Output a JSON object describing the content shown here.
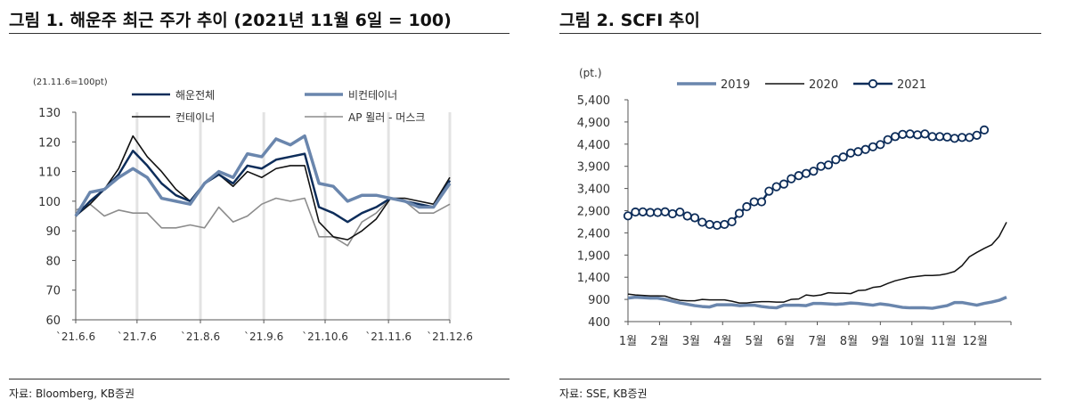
{
  "left": {
    "title": "그림 1. 해운주 최근 주가 추이 (2021년 11월 6일 = 100)",
    "source": "자료: Bloomberg, KB증권"
  },
  "right": {
    "title": "그림 2. SCFI 추이",
    "source": "자료: SSE, KB증권"
  },
  "chart_data": [
    {
      "type": "line",
      "unit_label": "(21.11.6=100pt)",
      "ylim": [
        60,
        130
      ],
      "yticks": [
        60,
        70,
        80,
        90,
        100,
        110,
        120,
        130
      ],
      "xticks": [
        "`21.6.6",
        "`21.7.6",
        "`21.8.6",
        "`21.9.6",
        "`21.10.6",
        "`21.11.6",
        "`21.12.6"
      ],
      "x": [
        "2021-06-06",
        "2021-06-13",
        "2021-06-20",
        "2021-06-27",
        "2021-07-04",
        "2021-07-11",
        "2021-07-18",
        "2021-07-25",
        "2021-08-01",
        "2021-08-08",
        "2021-08-15",
        "2021-08-22",
        "2021-08-29",
        "2021-09-05",
        "2021-09-12",
        "2021-09-19",
        "2021-09-26",
        "2021-10-03",
        "2021-10-10",
        "2021-10-17",
        "2021-10-24",
        "2021-10-31",
        "2021-11-07",
        "2021-11-14",
        "2021-11-21",
        "2021-11-28",
        "2021-12-06"
      ],
      "grid": "vertical at ticks",
      "legend": "top",
      "series": [
        {
          "name": "해운전체",
          "color": "#0d2d5a",
          "width": 2.5,
          "values": [
            95,
            100,
            104,
            109,
            117,
            112,
            106,
            102,
            100,
            106,
            109,
            106,
            112,
            111,
            114,
            115,
            116,
            98,
            96,
            93,
            96,
            98,
            101,
            100,
            99,
            98,
            107
          ]
        },
        {
          "name": "비컨테이너",
          "color": "#6a86ad",
          "width": 3.5,
          "values": [
            95,
            103,
            104,
            108,
            111,
            108,
            101,
            100,
            99,
            106,
            110,
            108,
            116,
            115,
            121,
            119,
            122,
            106,
            105,
            100,
            102,
            102,
            101,
            100,
            98,
            98,
            106
          ]
        },
        {
          "name": "컨테이너",
          "color": "#111111",
          "width": 1.6,
          "values": [
            95,
            99,
            104,
            111,
            122,
            115,
            110,
            104,
            100,
            106,
            109,
            105,
            110,
            108,
            111,
            112,
            112,
            93,
            88,
            87,
            90,
            94,
            101,
            101,
            100,
            99,
            108
          ]
        },
        {
          "name": "AP 묄러 - 머스크",
          "color": "#8c8c8c",
          "width": 1.6,
          "values": [
            97,
            99,
            95,
            97,
            96,
            96,
            91,
            91,
            92,
            91,
            98,
            93,
            95,
            99,
            101,
            100,
            101,
            88,
            88,
            85,
            93,
            96,
            101,
            100,
            96,
            96,
            99
          ]
        }
      ]
    },
    {
      "type": "line",
      "unit_label": "(pt.)",
      "ylim": [
        400,
        5400
      ],
      "yticks": [
        "400",
        "900",
        "1,400",
        "1,900",
        "2,400",
        "2,900",
        "3,400",
        "3,900",
        "4,400",
        "4,900",
        "5,400"
      ],
      "xticks": [
        "1월",
        "2월",
        "3월",
        "4월",
        "5월",
        "6월",
        "7월",
        "8월",
        "9월",
        "10월",
        "11월",
        "12월"
      ],
      "x_unit": "week of year",
      "legend": "top",
      "series": [
        {
          "name": "2019",
          "color": "#6a86ad",
          "width": 3.5,
          "values": [
            930,
            950,
            940,
            930,
            930,
            900,
            860,
            820,
            790,
            760,
            740,
            730,
            780,
            780,
            780,
            760,
            770,
            770,
            740,
            720,
            710,
            770,
            770,
            770,
            760,
            810,
            810,
            800,
            790,
            800,
            820,
            810,
            790,
            770,
            800,
            780,
            750,
            720,
            710,
            710,
            710,
            700,
            730,
            760,
            830,
            830,
            800,
            770,
            810,
            840,
            880,
            950
          ]
        },
        {
          "name": "2020",
          "color": "#111111",
          "width": 1.5,
          "values": [
            1020,
            1000,
            990,
            980,
            980,
            975,
            920,
            880,
            870,
            870,
            900,
            890,
            890,
            890,
            860,
            820,
            820,
            840,
            850,
            850,
            840,
            840,
            900,
            910,
            1000,
            980,
            1000,
            1050,
            1040,
            1040,
            1030,
            1100,
            1110,
            1170,
            1190,
            1260,
            1320,
            1360,
            1400,
            1420,
            1440,
            1440,
            1450,
            1480,
            1530,
            1660,
            1860,
            1960,
            2050,
            2130,
            2320,
            2640
          ]
        },
        {
          "name": "2021",
          "color": "#0d2d5a",
          "width": 2.5,
          "marker": "circle",
          "values": [
            2783,
            2870,
            2873,
            2860,
            2860,
            2875,
            2830,
            2869,
            2780,
            2740,
            2640,
            2590,
            2570,
            2590,
            2650,
            2840,
            2990,
            3100,
            3100,
            3340,
            3440,
            3500,
            3620,
            3690,
            3740,
            3790,
            3900,
            3930,
            4050,
            4110,
            4200,
            4230,
            4280,
            4340,
            4390,
            4500,
            4570,
            4620,
            4630,
            4610,
            4630,
            4570,
            4570,
            4560,
            4530,
            4550,
            4550,
            4600,
            4720
          ]
        }
      ]
    }
  ]
}
